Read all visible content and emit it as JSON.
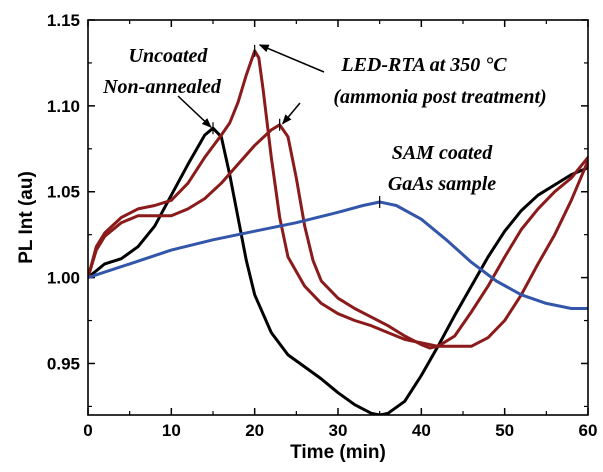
{
  "chart_data": {
    "type": "line",
    "xlabel": "Time (min)",
    "ylabel": "PL Int (au)",
    "xlim": [
      0,
      60
    ],
    "ylim": [
      0.92,
      1.15
    ],
    "x_ticks": [
      "0",
      "10",
      "20",
      "30",
      "40",
      "50",
      "60"
    ],
    "y_ticks": [
      "0.95",
      "1.00",
      "1.05",
      "1.10",
      "1.15"
    ],
    "grid": false,
    "series": [
      {
        "key": "uncoated",
        "color": "#000000",
        "points": [
          [
            0,
            1.0
          ],
          [
            2,
            1.008
          ],
          [
            4,
            1.011
          ],
          [
            6,
            1.018
          ],
          [
            8,
            1.03
          ],
          [
            10,
            1.048
          ],
          [
            12,
            1.066
          ],
          [
            14,
            1.083
          ],
          [
            15,
            1.087
          ],
          [
            16,
            1.082
          ],
          [
            17,
            1.06
          ],
          [
            18,
            1.035
          ],
          [
            19,
            1.01
          ],
          [
            20,
            0.99
          ],
          [
            22,
            0.968
          ],
          [
            24,
            0.955
          ],
          [
            26,
            0.948
          ],
          [
            28,
            0.941
          ],
          [
            30,
            0.933
          ],
          [
            32,
            0.926
          ],
          [
            34,
            0.921
          ],
          [
            35,
            0.92
          ],
          [
            36,
            0.921
          ],
          [
            38,
            0.928
          ],
          [
            40,
            0.943
          ],
          [
            42,
            0.96
          ],
          [
            44,
            0.978
          ],
          [
            46,
            0.995
          ],
          [
            48,
            1.012
          ],
          [
            50,
            1.027
          ],
          [
            52,
            1.039
          ],
          [
            54,
            1.048
          ],
          [
            56,
            1.054
          ],
          [
            58,
            1.06
          ],
          [
            60,
            1.064
          ]
        ]
      },
      {
        "key": "led-rta-1",
        "color": "#8b1a1a",
        "points": [
          [
            0,
            1.0
          ],
          [
            1,
            1.018
          ],
          [
            2,
            1.026
          ],
          [
            4,
            1.035
          ],
          [
            6,
            1.04
          ],
          [
            8,
            1.042
          ],
          [
            10,
            1.045
          ],
          [
            12,
            1.055
          ],
          [
            14,
            1.07
          ],
          [
            16,
            1.083
          ],
          [
            17,
            1.09
          ],
          [
            18,
            1.102
          ],
          [
            19,
            1.118
          ],
          [
            20,
            1.132
          ],
          [
            20.5,
            1.128
          ],
          [
            21,
            1.11
          ],
          [
            22,
            1.07
          ],
          [
            23,
            1.035
          ],
          [
            24,
            1.012
          ],
          [
            26,
            0.995
          ],
          [
            28,
            0.985
          ],
          [
            30,
            0.979
          ],
          [
            32,
            0.975
          ],
          [
            34,
            0.972
          ],
          [
            36,
            0.968
          ],
          [
            38,
            0.964
          ],
          [
            40,
            0.962
          ],
          [
            42,
            0.96
          ],
          [
            44,
            0.96
          ],
          [
            46,
            0.96
          ],
          [
            48,
            0.965
          ],
          [
            50,
            0.975
          ],
          [
            52,
            0.99
          ],
          [
            54,
            1.008
          ],
          [
            56,
            1.025
          ],
          [
            58,
            1.045
          ],
          [
            60,
            1.068
          ]
        ]
      },
      {
        "key": "led-rta-2",
        "color": "#8b1a1a",
        "points": [
          [
            0,
            1.0
          ],
          [
            1,
            1.016
          ],
          [
            2,
            1.024
          ],
          [
            4,
            1.032
          ],
          [
            6,
            1.036
          ],
          [
            10,
            1.036
          ],
          [
            12,
            1.04
          ],
          [
            14,
            1.046
          ],
          [
            16,
            1.055
          ],
          [
            18,
            1.066
          ],
          [
            20,
            1.077
          ],
          [
            22,
            1.086
          ],
          [
            23,
            1.089
          ],
          [
            24,
            1.082
          ],
          [
            25,
            1.058
          ],
          [
            26,
            1.03
          ],
          [
            27,
            1.01
          ],
          [
            28,
            0.998
          ],
          [
            30,
            0.988
          ],
          [
            32,
            0.982
          ],
          [
            34,
            0.977
          ],
          [
            36,
            0.972
          ],
          [
            38,
            0.966
          ],
          [
            40,
            0.961
          ],
          [
            41,
            0.959
          ],
          [
            42,
            0.96
          ],
          [
            44,
            0.966
          ],
          [
            46,
            0.98
          ],
          [
            48,
            0.995
          ],
          [
            50,
            1.012
          ],
          [
            52,
            1.028
          ],
          [
            54,
            1.04
          ],
          [
            56,
            1.05
          ],
          [
            58,
            1.058
          ],
          [
            60,
            1.07
          ]
        ]
      },
      {
        "key": "sam-coated",
        "color": "#3355aa",
        "points": [
          [
            0,
            1.0
          ],
          [
            5,
            1.008
          ],
          [
            10,
            1.016
          ],
          [
            15,
            1.022
          ],
          [
            20,
            1.027
          ],
          [
            25,
            1.032
          ],
          [
            30,
            1.038
          ],
          [
            33,
            1.042
          ],
          [
            35,
            1.044
          ],
          [
            37,
            1.042
          ],
          [
            40,
            1.034
          ],
          [
            43,
            1.022
          ],
          [
            46,
            1.009
          ],
          [
            49,
            0.998
          ],
          [
            52,
            0.99
          ],
          [
            55,
            0.985
          ],
          [
            58,
            0.982
          ],
          [
            60,
            0.982
          ]
        ]
      }
    ],
    "annotations": [
      {
        "key": "uncoated",
        "lines": [
          "Uncoated",
          "Non-annealed"
        ]
      },
      {
        "key": "led",
        "lines": [
          "LED-RTA at 350 °C",
          "(ammonia post treatment)"
        ]
      },
      {
        "key": "sam",
        "lines": [
          "SAM coated",
          "GaAs sample"
        ]
      }
    ]
  }
}
